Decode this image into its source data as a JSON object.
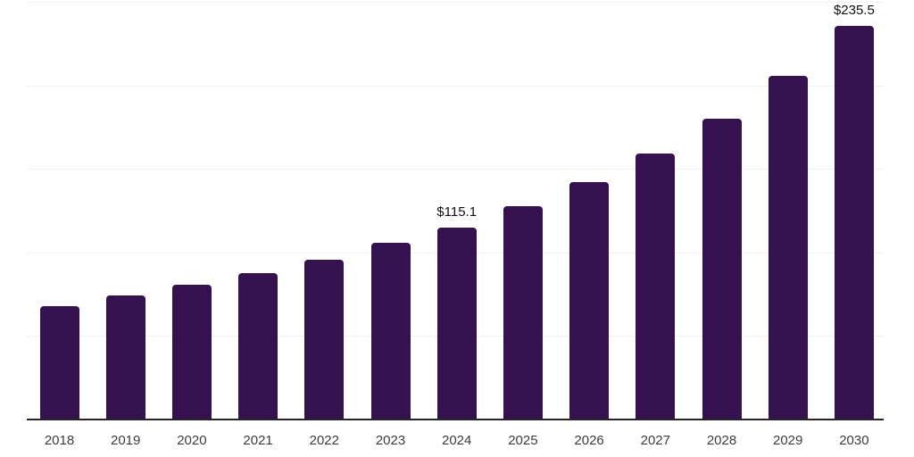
{
  "chart_data": {
    "type": "bar",
    "title": "",
    "xlabel": "",
    "ylabel": "",
    "categories": [
      "2018",
      "2019",
      "2020",
      "2021",
      "2022",
      "2023",
      "2024",
      "2025",
      "2026",
      "2027",
      "2028",
      "2029",
      "2030"
    ],
    "values": [
      67.8,
      74.3,
      80.5,
      87.6,
      95.6,
      105.6,
      115.1,
      127.8,
      142.1,
      159.3,
      180.2,
      205.5,
      235.5
    ],
    "labeled_points": [
      {
        "category": "2024",
        "label": "$115.1"
      },
      {
        "category": "2030",
        "label": "$235.5"
      }
    ],
    "ylim": [
      0,
      250
    ],
    "gridline_step": 50,
    "grid": true,
    "legend": false,
    "y_axis_labels_visible": false,
    "colors": {
      "bar": "#361150",
      "axis": "#262626",
      "gridline": "#F1F1F1",
      "tick_label": "#3D3D3D",
      "data_label": "#111111",
      "background": "#FFFFFF"
    }
  }
}
